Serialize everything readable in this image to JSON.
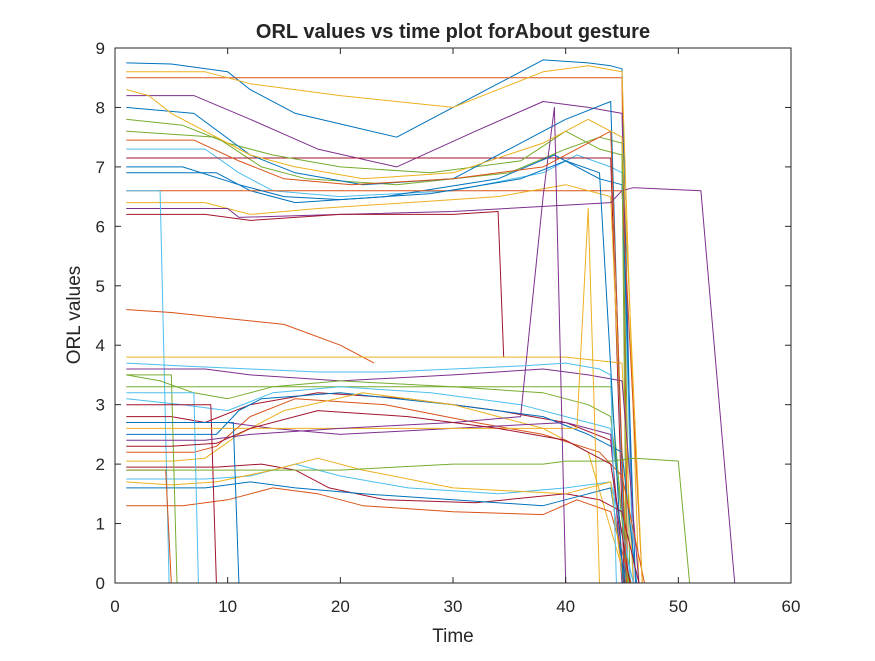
{
  "chart_data": {
    "type": "line",
    "title": "ORL values vs time plot forAbout gesture",
    "xlabel": "Time",
    "ylabel": "ORL values",
    "xlim": [
      0,
      60
    ],
    "ylim": [
      0,
      9
    ],
    "xticks": [
      "0",
      "10",
      "20",
      "30",
      "40",
      "50",
      "60"
    ],
    "yticks": [
      "0",
      "1",
      "2",
      "3",
      "4",
      "5",
      "6",
      "7",
      "8",
      "9"
    ],
    "grid": false,
    "legend": "none",
    "colors": [
      "#0072BD",
      "#D95319",
      "#EDB120",
      "#7E2F8E",
      "#77AC30",
      "#4DBEEE",
      "#A2142F"
    ],
    "series": [
      {
        "x": [
          1,
          5,
          10,
          12,
          16,
          25,
          33,
          38,
          42,
          44,
          45,
          46
        ],
        "y": [
          8.75,
          8.73,
          8.6,
          8.3,
          7.9,
          7.5,
          8.3,
          8.8,
          8.75,
          8.7,
          8.65,
          0
        ]
      },
      {
        "x": [
          1,
          10,
          20,
          30,
          35,
          40,
          45,
          45.5
        ],
        "y": [
          8.5,
          8.5,
          8.5,
          8.5,
          8.5,
          8.5,
          8.5,
          0
        ]
      },
      {
        "x": [
          1,
          8,
          12,
          20,
          30,
          38,
          42,
          45,
          46.5
        ],
        "y": [
          8.6,
          8.6,
          8.4,
          8.2,
          8.0,
          8.6,
          8.7,
          8.6,
          0
        ]
      },
      {
        "x": [
          1,
          7,
          12,
          18,
          25,
          32,
          38,
          42,
          45,
          46
        ],
        "y": [
          8.2,
          8.2,
          7.8,
          7.3,
          7.0,
          7.6,
          8.1,
          8.0,
          7.9,
          0
        ]
      },
      {
        "x": [
          1,
          9,
          13,
          17,
          25,
          35,
          40,
          43,
          45,
          45.7
        ],
        "y": [
          7.6,
          7.5,
          7.0,
          6.8,
          6.7,
          6.9,
          7.3,
          7.5,
          7.4,
          0
        ]
      },
      {
        "x": [
          1,
          8,
          11,
          14,
          20,
          30,
          38,
          41,
          44,
          45,
          46
        ],
        "y": [
          7.3,
          7.3,
          6.9,
          6.6,
          6.5,
          6.6,
          6.9,
          7.2,
          7.0,
          6.9,
          0
        ]
      },
      {
        "x": [
          1,
          10,
          20,
          30,
          40,
          44,
          45.2
        ],
        "y": [
          7.15,
          7.15,
          7.15,
          7.15,
          7.15,
          7.15,
          0
        ]
      },
      {
        "x": [
          1,
          9,
          12,
          16,
          24,
          34,
          39,
          43,
          45,
          46.2
        ],
        "y": [
          6.9,
          6.9,
          6.6,
          6.4,
          6.5,
          6.8,
          7.2,
          6.8,
          6.7,
          0
        ]
      },
      {
        "x": [
          1,
          10,
          20,
          30,
          40,
          45,
          46.8
        ],
        "y": [
          6.6,
          6.6,
          6.6,
          6.6,
          6.6,
          6.6,
          0
        ]
      },
      {
        "x": [
          1,
          8,
          12,
          18,
          26,
          34,
          40,
          44,
          45.5
        ],
        "y": [
          6.4,
          6.4,
          6.2,
          6.3,
          6.4,
          6.5,
          6.7,
          6.5,
          0
        ]
      },
      {
        "x": [
          1,
          10,
          11,
          20,
          30,
          44,
          45,
          46,
          52,
          55
        ],
        "y": [
          6.3,
          6.3,
          6.15,
          6.2,
          6.25,
          6.4,
          6.6,
          6.65,
          6.6,
          0
        ]
      },
      {
        "x": [
          1,
          6,
          10,
          14,
          20,
          28,
          36,
          40,
          43,
          45,
          45.4
        ],
        "y": [
          7.8,
          7.7,
          7.4,
          7.2,
          7.0,
          6.9,
          7.1,
          7.6,
          7.3,
          7.2,
          0
        ]
      },
      {
        "x": [
          1,
          4,
          4.8
        ],
        "y": [
          6.6,
          6.6,
          0
        ]
      },
      {
        "x": [
          1,
          8,
          12,
          20,
          30,
          34,
          34.5
        ],
        "y": [
          6.2,
          6.2,
          6.1,
          6.2,
          6.2,
          6.25,
          3.8
        ]
      },
      {
        "x": [
          1,
          7,
          12,
          16,
          22,
          30,
          40,
          44,
          45.3
        ],
        "y": [
          8.0,
          7.9,
          7.2,
          6.9,
          6.7,
          6.8,
          7.8,
          8.1,
          0
        ]
      },
      {
        "x": [
          1,
          5,
          10,
          15,
          20,
          23
        ],
        "y": [
          4.6,
          4.55,
          4.45,
          4.35,
          4.0,
          3.7
        ]
      },
      {
        "x": [
          1,
          10,
          20,
          30,
          40,
          45,
          46
        ],
        "y": [
          3.8,
          3.8,
          3.8,
          3.8,
          3.8,
          3.7,
          0
        ]
      },
      {
        "x": [
          1,
          8,
          12,
          20,
          30,
          38,
          42,
          45,
          46.5
        ],
        "y": [
          3.6,
          3.6,
          3.5,
          3.4,
          3.5,
          3.6,
          3.5,
          3.4,
          0
        ]
      },
      {
        "x": [
          1,
          10,
          20,
          30,
          40,
          44,
          45.5
        ],
        "y": [
          3.3,
          3.3,
          3.3,
          3.3,
          3.3,
          3.3,
          0
        ]
      },
      {
        "x": [
          1,
          6,
          10,
          14,
          20,
          28,
          36,
          40,
          44,
          45.8
        ],
        "y": [
          3.1,
          3.0,
          2.9,
          3.2,
          3.3,
          3.2,
          3.0,
          2.8,
          2.6,
          0
        ]
      },
      {
        "x": [
          1,
          5,
          8,
          12,
          18,
          26,
          34,
          40,
          44,
          45.2
        ],
        "y": [
          2.8,
          2.8,
          2.7,
          3.0,
          3.2,
          3.1,
          2.9,
          2.7,
          2.4,
          0
        ]
      },
      {
        "x": [
          1,
          6,
          9,
          11,
          13,
          20,
          30,
          38,
          42,
          45,
          46.3
        ],
        "y": [
          2.5,
          2.5,
          2.5,
          2.9,
          3.1,
          3.2,
          3.0,
          2.8,
          2.5,
          2.2,
          0
        ]
      },
      {
        "x": [
          1,
          7,
          9,
          12,
          16,
          24,
          32,
          38,
          43,
          45,
          47
        ],
        "y": [
          2.2,
          2.2,
          2.3,
          2.8,
          3.1,
          3.0,
          2.7,
          2.5,
          2.2,
          1.8,
          0
        ]
      },
      {
        "x": [
          1,
          5,
          8,
          11,
          15,
          22,
          30,
          38,
          42,
          45.4
        ],
        "y": [
          2.05,
          2.05,
          2.1,
          2.5,
          2.9,
          3.2,
          3.0,
          2.6,
          2.2,
          0
        ]
      },
      {
        "x": [
          1,
          10,
          14,
          20,
          30,
          40,
          44,
          45
        ],
        "y": [
          2.7,
          2.7,
          2.6,
          2.5,
          2.6,
          2.7,
          2.5,
          0
        ]
      },
      {
        "x": [
          1,
          4,
          7,
          10,
          14,
          20,
          30,
          38,
          42,
          44,
          45.6
        ],
        "y": [
          3.5,
          3.4,
          3.2,
          3.1,
          3.3,
          3.4,
          3.3,
          3.2,
          3.0,
          2.8,
          0
        ]
      },
      {
        "x": [
          1,
          8,
          12,
          16,
          20,
          26,
          34,
          40,
          44,
          46
        ],
        "y": [
          1.75,
          1.75,
          1.8,
          2.0,
          1.8,
          1.6,
          1.5,
          1.6,
          1.7,
          0
        ]
      },
      {
        "x": [
          1,
          9,
          13,
          16,
          19,
          24,
          32,
          40,
          43,
          45,
          46.5
        ],
        "y": [
          1.95,
          1.95,
          2.0,
          1.9,
          1.6,
          1.4,
          1.35,
          1.5,
          1.4,
          1.2,
          0
        ]
      },
      {
        "x": [
          1,
          8,
          12,
          16,
          22,
          30,
          38,
          42,
          44,
          45.3
        ],
        "y": [
          1.6,
          1.6,
          1.7,
          1.6,
          1.5,
          1.4,
          1.3,
          1.5,
          1.6,
          0
        ]
      },
      {
        "x": [
          1,
          6,
          10,
          14,
          18,
          22,
          30,
          38,
          41,
          44,
          45.8
        ],
        "y": [
          1.3,
          1.3,
          1.4,
          1.6,
          1.5,
          1.3,
          1.2,
          1.15,
          1.4,
          1.2,
          0
        ]
      },
      {
        "x": [
          1,
          5,
          9,
          14,
          18,
          22,
          30,
          40,
          44,
          45.1
        ],
        "y": [
          1.7,
          1.65,
          1.7,
          1.9,
          2.1,
          1.9,
          1.6,
          1.5,
          1.7,
          0
        ]
      },
      {
        "x": [
          1,
          10,
          20,
          30,
          40,
          43,
          44
        ],
        "y": [
          0,
          0,
          0,
          0,
          0,
          0,
          0
        ]
      },
      {
        "x": [
          1,
          5,
          5.5
        ],
        "y": [
          3.5,
          3.5,
          0
        ]
      },
      {
        "x": [
          1,
          7,
          7.4
        ],
        "y": [
          3.2,
          3.2,
          0
        ]
      },
      {
        "x": [
          1,
          8.5,
          9
        ],
        "y": [
          3.0,
          3.0,
          0
        ]
      },
      {
        "x": [
          1,
          10.5,
          11
        ],
        "y": [
          2.7,
          2.7,
          0
        ]
      },
      {
        "x": [
          1,
          4.5,
          5
        ],
        "y": [
          1.9,
          1.9,
          0
        ]
      },
      {
        "x": [
          1,
          6,
          10,
          20,
          30,
          41,
          42,
          43
        ],
        "y": [
          2.6,
          2.6,
          2.6,
          2.6,
          2.6,
          2.6,
          6.3,
          0
        ]
      },
      {
        "x": [
          1,
          8,
          12,
          20,
          30,
          36,
          38,
          39,
          40
        ],
        "y": [
          2.4,
          2.4,
          2.5,
          2.6,
          2.7,
          2.8,
          6.5,
          8.0,
          0
        ]
      },
      {
        "x": [
          1,
          10,
          20,
          30,
          38,
          40,
          44,
          46,
          50,
          51
        ],
        "y": [
          1.9,
          1.9,
          1.9,
          2.0,
          2.0,
          2.05,
          2.05,
          2.1,
          2.05,
          0
        ]
      },
      {
        "x": [
          1,
          6,
          12,
          18,
          24,
          30,
          36,
          40,
          43,
          44,
          44.5
        ],
        "y": [
          3.7,
          3.65,
          3.6,
          3.55,
          3.55,
          3.6,
          3.65,
          3.7,
          3.6,
          3.5,
          0
        ]
      },
      {
        "x": [
          1,
          5,
          9,
          12,
          18,
          26,
          34,
          40,
          44,
          45.7
        ],
        "y": [
          2.3,
          2.3,
          2.35,
          2.6,
          2.9,
          2.8,
          2.6,
          2.4,
          2.0,
          0
        ]
      },
      {
        "x": [
          1,
          6,
          11,
          15,
          20,
          28,
          36,
          40,
          43,
          45.1
        ],
        "y": [
          7.0,
          7.0,
          6.7,
          6.5,
          6.45,
          6.55,
          6.8,
          7.1,
          6.9,
          0
        ]
      },
      {
        "x": [
          1,
          7,
          11,
          15,
          21,
          30,
          38,
          42,
          44,
          45.4
        ],
        "y": [
          7.45,
          7.45,
          7.1,
          6.8,
          6.7,
          6.8,
          7.0,
          7.4,
          7.6,
          0
        ]
      },
      {
        "x": [
          1,
          3,
          5,
          8,
          12,
          16,
          22,
          30,
          38,
          42,
          45,
          46.8
        ],
        "y": [
          8.3,
          8.2,
          7.9,
          7.6,
          7.2,
          7.0,
          6.8,
          6.9,
          7.4,
          7.8,
          7.5,
          0
        ]
      }
    ]
  }
}
